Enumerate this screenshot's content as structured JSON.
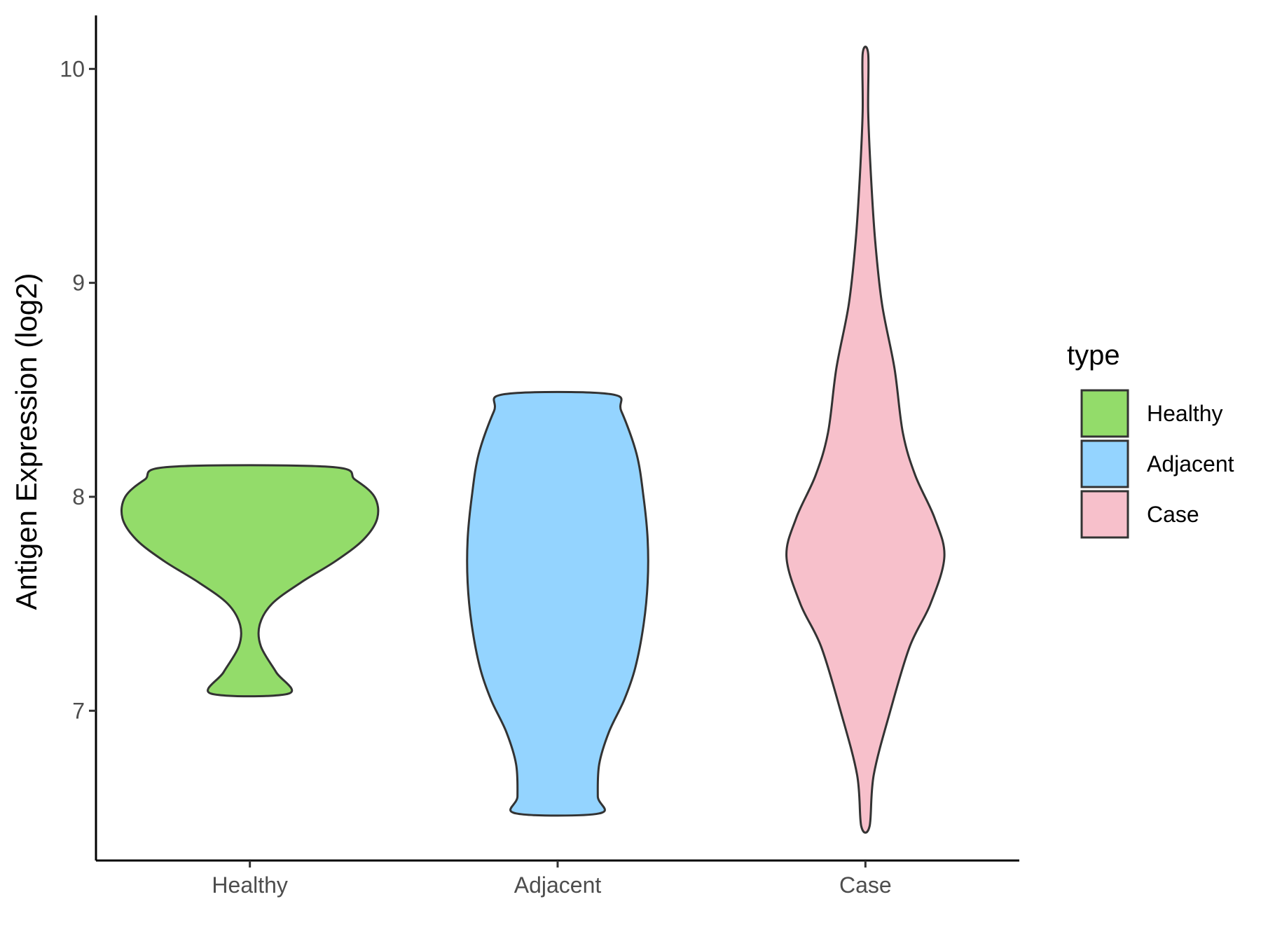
{
  "chart_data": {
    "type": "violin",
    "xlabel": "",
    "ylabel": "Antigen Expression (log2)",
    "categories": [
      "Healthy",
      "Adjacent",
      "Case"
    ],
    "ylim": [
      6.3,
      10.25
    ],
    "yticks": [
      7,
      8,
      9,
      10
    ],
    "grid": false,
    "legend": {
      "title": "type",
      "placement": "right",
      "entries": [
        "Healthy",
        "Adjacent",
        "Case"
      ]
    },
    "series": [
      {
        "name": "Healthy",
        "color": "#93dc6a",
        "min": 7.08,
        "max": 8.14,
        "density": [
          [
            7.08,
            0.28
          ],
          [
            7.18,
            0.19
          ],
          [
            7.3,
            0.08
          ],
          [
            7.4,
            0.07
          ],
          [
            7.5,
            0.16
          ],
          [
            7.6,
            0.37
          ],
          [
            7.7,
            0.62
          ],
          [
            7.8,
            0.82
          ],
          [
            7.9,
            0.92
          ],
          [
            8.0,
            0.9
          ],
          [
            8.08,
            0.76
          ],
          [
            8.14,
            0.58
          ]
        ]
      },
      {
        "name": "Adjacent",
        "color": "#94d4ff",
        "min": 6.52,
        "max": 8.48,
        "density": [
          [
            6.52,
            0.3
          ],
          [
            6.6,
            0.29
          ],
          [
            6.75,
            0.3
          ],
          [
            6.9,
            0.37
          ],
          [
            7.05,
            0.48
          ],
          [
            7.2,
            0.56
          ],
          [
            7.4,
            0.62
          ],
          [
            7.6,
            0.65
          ],
          [
            7.8,
            0.65
          ],
          [
            8.0,
            0.62
          ],
          [
            8.2,
            0.57
          ],
          [
            8.4,
            0.46
          ],
          [
            8.48,
            0.38
          ]
        ]
      },
      {
        "name": "Case",
        "color": "#f7c0cb",
        "min": 6.46,
        "max": 10.07,
        "density": [
          [
            6.46,
            0.03
          ],
          [
            6.7,
            0.06
          ],
          [
            7.0,
            0.18
          ],
          [
            7.3,
            0.32
          ],
          [
            7.5,
            0.47
          ],
          [
            7.72,
            0.57
          ],
          [
            7.9,
            0.5
          ],
          [
            8.1,
            0.36
          ],
          [
            8.3,
            0.27
          ],
          [
            8.6,
            0.21
          ],
          [
            8.9,
            0.12
          ],
          [
            9.2,
            0.07
          ],
          [
            9.5,
            0.04
          ],
          [
            9.8,
            0.02
          ],
          [
            10.07,
            0.02
          ]
        ]
      }
    ]
  }
}
